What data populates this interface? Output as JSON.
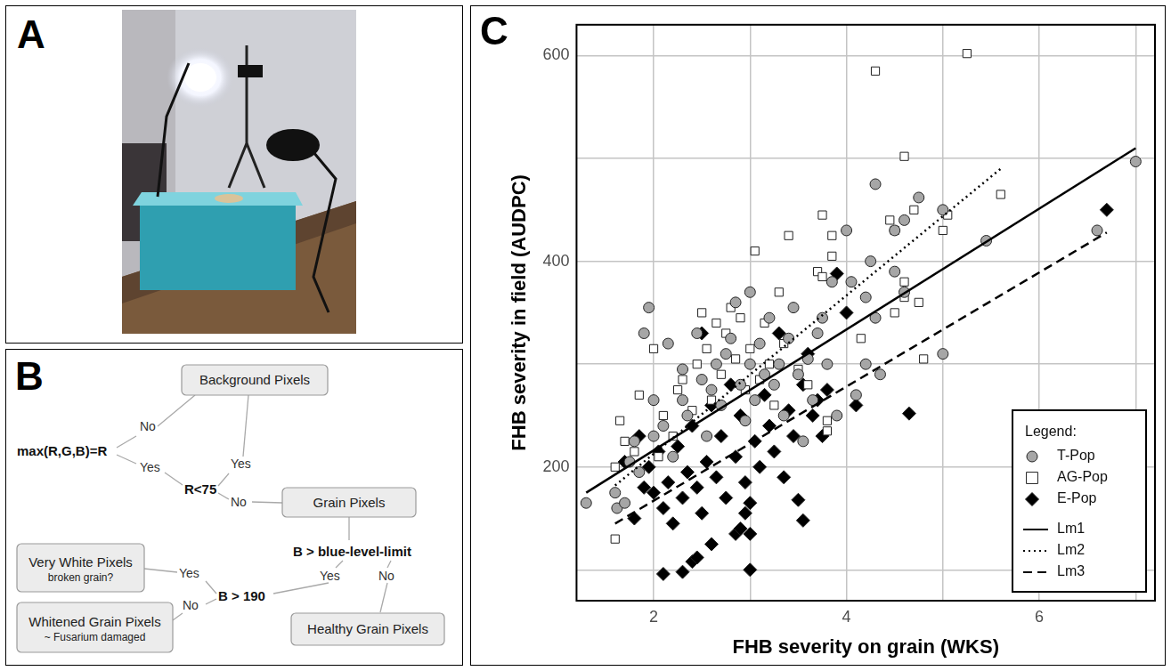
{
  "panels": {
    "A": {
      "letter": "A"
    },
    "B": {
      "letter": "B",
      "boxes": [
        {
          "text": "Background Pixels"
        },
        {
          "text": "Grain Pixels"
        },
        {
          "text": "Very White Pixels",
          "note": "broken grain?"
        },
        {
          "text": "Whitened Grain Pixels",
          "note": "~ Fusarium damaged"
        },
        {
          "text": "Healthy Grain Pixels"
        }
      ],
      "tests": [
        {
          "text": "max(R,G,B)=R",
          "yes": "Yes",
          "no": "No"
        },
        {
          "text": "R<75",
          "yes": "Yes",
          "no": "No"
        },
        {
          "text": "B > blue-level-limit",
          "yes": "Yes",
          "no": "No"
        },
        {
          "text": "B > 190",
          "yes": "Yes",
          "no": "No"
        }
      ]
    }
  },
  "chart_data": {
    "letter": "C",
    "type": "scatter",
    "x_label": "FHB severity on grain (WKS)",
    "y_label": "FHB severity in field (AUDPC)",
    "xlim": [
      1.2,
      7.2
    ],
    "xticks": [
      2,
      4,
      6
    ],
    "ylim": [
      70,
      630
    ],
    "yticks": [
      200,
      400,
      600
    ],
    "grid": true,
    "legend": "lower right",
    "legend_title": "Legend:",
    "series": [
      {
        "name": "T-Pop",
        "type": "scatter",
        "marker": "circle",
        "color": "#a6a6a6",
        "x": [
          1.3,
          1.6,
          1.62,
          1.7,
          1.75,
          1.8,
          1.85,
          1.95,
          1.9,
          2.0,
          2.0,
          2.1,
          2.15,
          2.2,
          2.3,
          2.3,
          2.35,
          2.45,
          2.5,
          2.55,
          2.6,
          2.65,
          2.7,
          2.75,
          2.8,
          2.85,
          2.9,
          2.95,
          3.0,
          3.0,
          3.05,
          3.1,
          3.15,
          3.2,
          3.25,
          3.3,
          3.35,
          3.4,
          3.45,
          3.5,
          3.55,
          3.6,
          3.65,
          3.7,
          3.75,
          3.8,
          3.85,
          3.9,
          4.0,
          4.05,
          4.1,
          4.2,
          4.2,
          4.25,
          4.3,
          4.3,
          4.35,
          4.5,
          4.5,
          4.6,
          4.6,
          4.75,
          5.0,
          5.0,
          5.45,
          6.6,
          7.0
        ],
        "values": [
          165,
          175,
          160,
          165,
          205,
          225,
          195,
          355,
          330,
          265,
          230,
          240,
          320,
          210,
          265,
          295,
          250,
          330,
          285,
          230,
          275,
          300,
          260,
          310,
          325,
          360,
          280,
          245,
          370,
          300,
          265,
          320,
          290,
          345,
          280,
          300,
          250,
          325,
          355,
          290,
          225,
          305,
          265,
          330,
          345,
          300,
          380,
          250,
          430,
          380,
          270,
          365,
          300,
          400,
          345,
          475,
          290,
          430,
          390,
          370,
          440,
          462,
          450,
          310,
          420,
          430,
          497
        ]
      },
      {
        "name": "AG-Pop",
        "type": "scatter",
        "marker": "square",
        "color": "#ffffff",
        "x": [
          1.6,
          1.6,
          1.65,
          1.7,
          1.8,
          1.85,
          2.0,
          2.05,
          2.1,
          2.2,
          2.25,
          2.3,
          2.4,
          2.45,
          2.5,
          2.55,
          2.6,
          2.65,
          2.7,
          2.75,
          2.8,
          2.85,
          2.9,
          2.95,
          3.0,
          3.05,
          3.1,
          3.15,
          3.2,
          3.25,
          3.3,
          3.35,
          3.4,
          3.5,
          3.6,
          3.7,
          3.75,
          3.75,
          3.8,
          3.8,
          3.85,
          3.85,
          4.15,
          4.3,
          4.45,
          4.5,
          4.5,
          4.6,
          4.6,
          4.6,
          4.7,
          4.75,
          4.8,
          5.0,
          5.05,
          5.25,
          5.6
        ],
        "values": [
          130,
          200,
          245,
          225,
          215,
          270,
          315,
          210,
          250,
          230,
          275,
          285,
          255,
          300,
          350,
          315,
          265,
          340,
          290,
          330,
          355,
          305,
          345,
          275,
          315,
          410,
          285,
          340,
          300,
          260,
          370,
          320,
          425,
          295,
          280,
          390,
          385,
          445,
          235,
          245,
          405,
          425,
          325,
          585,
          440,
          350,
          430,
          365,
          380,
          502,
          450,
          360,
          305,
          430,
          445,
          602,
          465
        ]
      },
      {
        "name": "E-Pop",
        "type": "scatter",
        "marker": "diamond",
        "color": "#000000",
        "x": [
          1.7,
          1.8,
          1.85,
          1.9,
          1.95,
          2.0,
          2.05,
          2.1,
          2.1,
          2.15,
          2.2,
          2.25,
          2.3,
          2.3,
          2.35,
          2.4,
          2.4,
          2.45,
          2.45,
          2.5,
          2.5,
          2.55,
          2.6,
          2.6,
          2.65,
          2.7,
          2.75,
          2.8,
          2.85,
          2.85,
          2.9,
          2.9,
          2.95,
          2.95,
          3.0,
          3.0,
          3.0,
          3.05,
          3.1,
          3.15,
          3.2,
          3.25,
          3.3,
          3.35,
          3.4,
          3.45,
          3.5,
          3.55,
          3.55,
          3.6,
          3.65,
          3.7,
          3.75,
          3.8,
          3.9,
          4.0,
          4.1,
          4.65,
          6.7
        ],
        "values": [
          205,
          150,
          230,
          180,
          200,
          175,
          215,
          96,
          160,
          185,
          145,
          220,
          98,
          170,
          195,
          108,
          240,
          112,
          180,
          155,
          330,
          205,
          125,
          260,
          190,
          230,
          170,
          280,
          135,
          210,
          140,
          250,
          155,
          185,
          100,
          135,
          165,
          225,
          200,
          270,
          240,
          215,
          330,
          190,
          255,
          230,
          168,
          148,
          280,
          310,
          250,
          265,
          230,
          275,
          388,
          350,
          260,
          252,
          450
        ]
      },
      {
        "name": "Lm1",
        "type": "line",
        "line_style": "solid",
        "color": "#000000",
        "x": [
          1.3,
          7.0
        ],
        "values": [
          175,
          510
        ]
      },
      {
        "name": "Lm2",
        "type": "line",
        "line_style": "dotted",
        "color": "#000000",
        "x": [
          1.6,
          5.6
        ],
        "values": [
          182,
          490
        ]
      },
      {
        "name": "Lm3",
        "type": "line",
        "line_style": "dashed",
        "color": "#000000",
        "x": [
          1.6,
          6.7
        ],
        "values": [
          145,
          428
        ]
      }
    ]
  }
}
